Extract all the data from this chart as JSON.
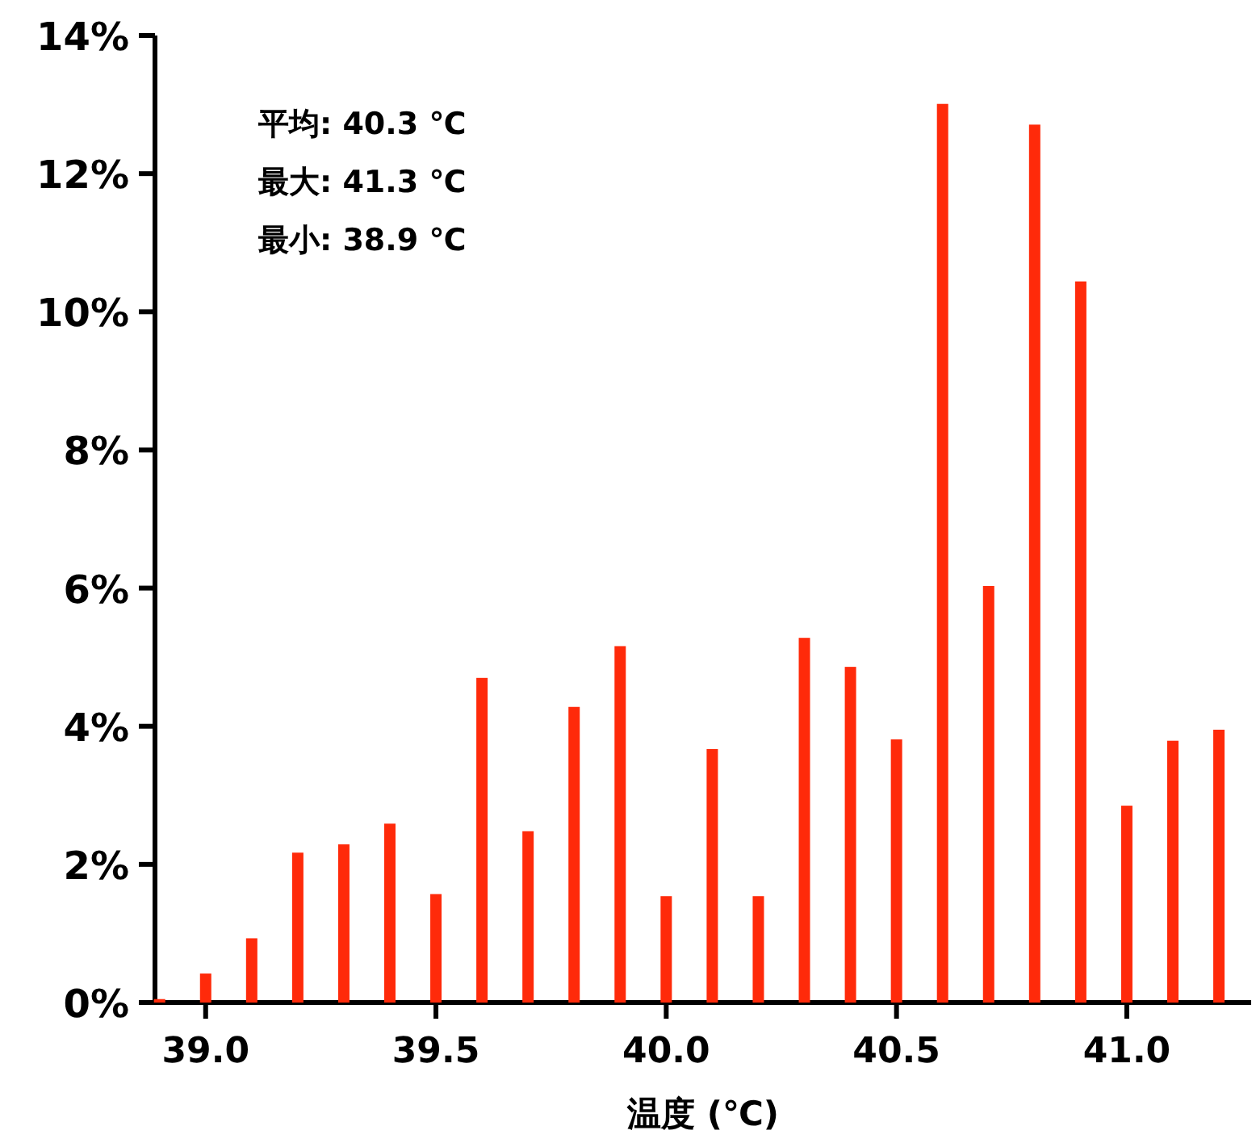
{
  "chart_data": {
    "type": "bar",
    "xlabel": "温度 (℃)",
    "annotations": [
      "平均: 40.3 ℃",
      "最大: 41.3 ℃",
      "最小: 38.9 ℃"
    ],
    "x": [
      38.9,
      39.0,
      39.1,
      39.2,
      39.3,
      39.4,
      39.5,
      39.6,
      39.7,
      39.8,
      39.9,
      40.0,
      40.1,
      40.2,
      40.3,
      40.4,
      40.5,
      40.6,
      40.7,
      40.8,
      40.9,
      41.0,
      41.1,
      41.2
    ],
    "values": [
      0.05,
      0.42,
      0.93,
      2.17,
      2.29,
      2.59,
      1.57,
      4.7,
      2.48,
      4.28,
      5.16,
      1.54,
      3.67,
      1.54,
      5.28,
      4.86,
      3.81,
      13.01,
      6.03,
      12.71,
      10.44,
      2.85,
      3.79,
      3.95
    ],
    "color": "#ff2a0a",
    "xlim": [
      38.89,
      41.27
    ],
    "xticks": [
      {
        "value": 39,
        "label": "39.0"
      },
      {
        "value": 39.5,
        "label": "39.5"
      },
      {
        "value": 40,
        "label": "40.0"
      },
      {
        "value": 40.5,
        "label": "40.5"
      },
      {
        "value": 41,
        "label": "41.0"
      }
    ],
    "ylim": [
      0,
      14
    ],
    "yticks": [
      {
        "value": 0,
        "label": "0%"
      },
      {
        "value": 2,
        "label": "2%"
      },
      {
        "value": 4,
        "label": "4%"
      },
      {
        "value": 6,
        "label": "6%"
      },
      {
        "value": 8,
        "label": "8%"
      },
      {
        "value": 10,
        "label": "10%"
      },
      {
        "value": 12,
        "label": "12%"
      },
      {
        "value": 14,
        "label": "14%"
      }
    ],
    "grid": false
  }
}
